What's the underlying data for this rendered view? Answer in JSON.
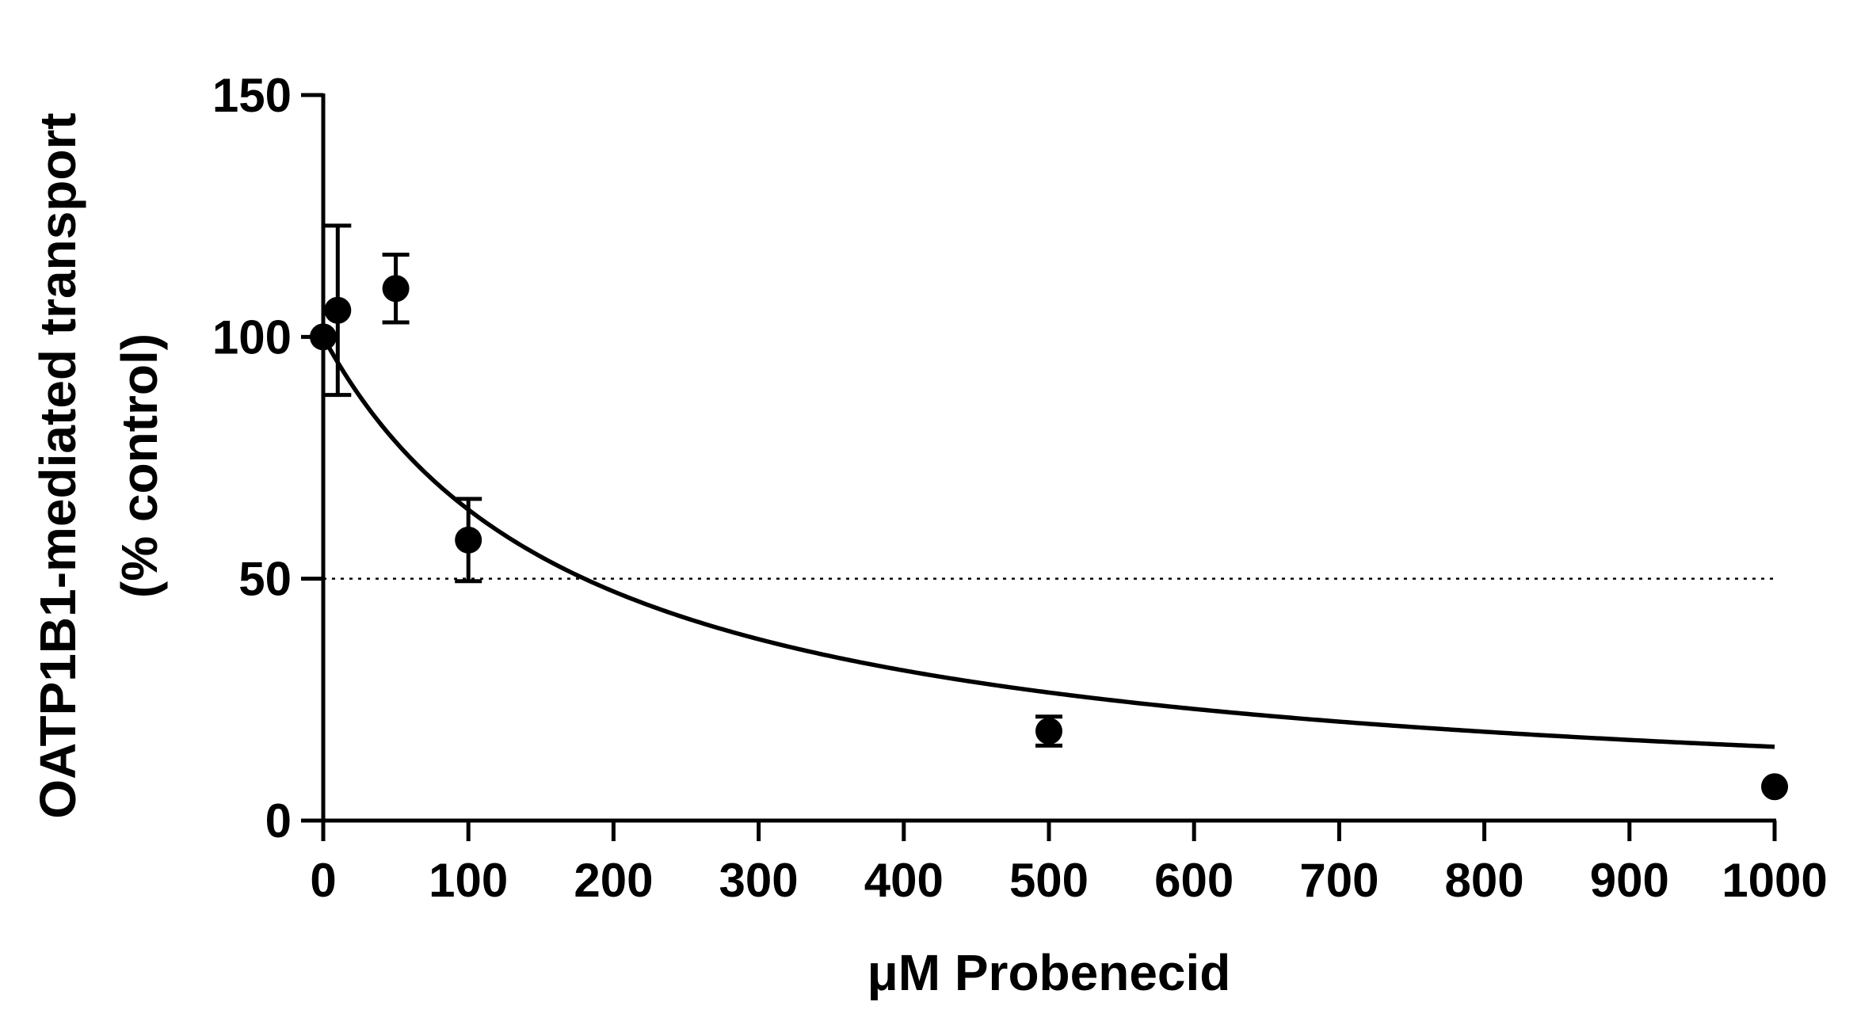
{
  "chart_data": {
    "type": "scatter",
    "title": "",
    "xlabel": "μM Probenecid",
    "ylabel_line1": "OATP1B1-mediated transport",
    "ylabel_line2": "(% control)",
    "xlim": [
      0,
      1000
    ],
    "ylim": [
      0,
      150
    ],
    "x_ticks": [
      0,
      100,
      200,
      300,
      400,
      500,
      600,
      700,
      800,
      900,
      1000
    ],
    "x_tick_labels": [
      "0",
      "100",
      "200",
      "300",
      "400",
      "500",
      "600",
      "700",
      "800",
      "900",
      "1000"
    ],
    "y_ticks": [
      0,
      50,
      100,
      150
    ],
    "y_tick_labels": [
      "0",
      "50",
      "100",
      "150"
    ],
    "grid": false,
    "legend": "none",
    "reference_line": {
      "y": 50,
      "style": "dotted"
    },
    "series": [
      {
        "points": [
          {
            "x": 0,
            "y": 100,
            "err": 0
          },
          {
            "x": 10,
            "y": 105.5,
            "err": 17.5
          },
          {
            "x": 50,
            "y": 110,
            "err": 7
          },
          {
            "x": 100,
            "y": 58,
            "err": 8.5
          },
          {
            "x": 500,
            "y": 18.5,
            "err": 3
          },
          {
            "x": 1000,
            "y": 7,
            "err": 0
          }
        ]
      }
    ],
    "fit_curve": {
      "model": "inhibition",
      "top": 100,
      "ic50": 180,
      "x_max": 1000
    },
    "colors": {
      "marks": "#000000",
      "background": "#ffffff"
    }
  }
}
